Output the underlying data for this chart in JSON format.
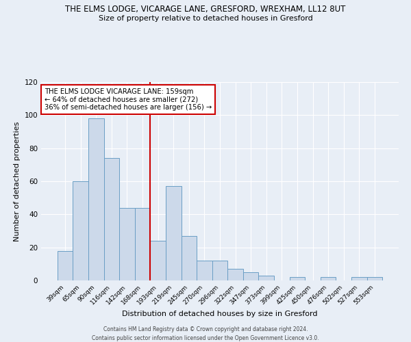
{
  "title_line1": "THE ELMS LODGE, VICARAGE LANE, GRESFORD, WREXHAM, LL12 8UT",
  "title_line2": "Size of property relative to detached houses in Gresford",
  "xlabel": "Distribution of detached houses by size in Gresford",
  "ylabel": "Number of detached properties",
  "bar_labels": [
    "39sqm",
    "65sqm",
    "90sqm",
    "116sqm",
    "142sqm",
    "168sqm",
    "193sqm",
    "219sqm",
    "245sqm",
    "270sqm",
    "296sqm",
    "322sqm",
    "347sqm",
    "373sqm",
    "399sqm",
    "425sqm",
    "450sqm",
    "476sqm",
    "502sqm",
    "527sqm",
    "553sqm"
  ],
  "bar_values": [
    18,
    60,
    98,
    74,
    44,
    44,
    24,
    57,
    27,
    12,
    12,
    7,
    5,
    3,
    0,
    2,
    0,
    2,
    0,
    2,
    2
  ],
  "bar_color": "#ccd9ea",
  "bar_edge_color": "#6a9ec5",
  "reference_line_x": 5.5,
  "annotation_text": "THE ELMS LODGE VICARAGE LANE: 159sqm\n← 64% of detached houses are smaller (272)\n36% of semi-detached houses are larger (156) →",
  "annotation_box_color": "#ffffff",
  "annotation_box_edge_color": "#cc0000",
  "reference_line_color": "#cc0000",
  "ylim": [
    0,
    120
  ],
  "yticks": [
    0,
    20,
    40,
    60,
    80,
    100,
    120
  ],
  "footer_line1": "Contains HM Land Registry data © Crown copyright and database right 2024.",
  "footer_line2": "Contains public sector information licensed under the Open Government Licence v3.0.",
  "background_color": "#e8eef6",
  "plot_background_color": "#e8eef6"
}
